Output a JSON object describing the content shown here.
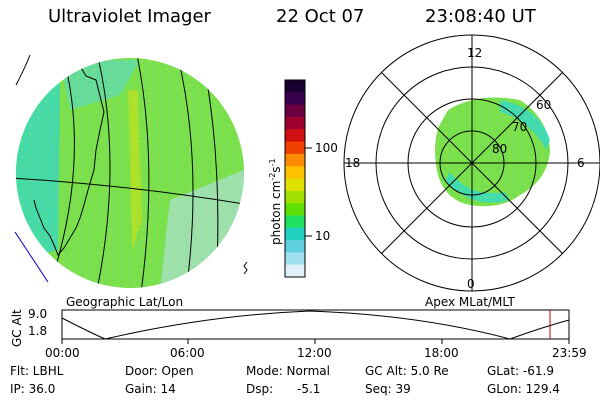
{
  "header": {
    "title": "Ultraviolet Imager",
    "date": "22 Oct 07",
    "time": "23:08:40 UT"
  },
  "colorbar": {
    "unit_label": "photon cm",
    "unit_sup1": "-2",
    "unit_mid": "s",
    "unit_sup2": "-1",
    "ticks": [
      "100",
      "10"
    ],
    "colors": [
      "#1a0030",
      "#3a0050",
      "#6a0040",
      "#a00030",
      "#d01010",
      "#f04000",
      "#ff8c00",
      "#ffc000",
      "#e0e000",
      "#a0e000",
      "#60e000",
      "#20e060",
      "#20d0c0",
      "#60d0e0",
      "#a0e0f0",
      "#e0f0f8"
    ]
  },
  "left_panel": {
    "label": "Geographic Lat/Lon",
    "fill": "#7be04a",
    "cyan": "#34d8c8"
  },
  "right_panel": {
    "label": "Apex MLat/MLT",
    "mlt": {
      "top": "12",
      "bottom": "0",
      "left": "18",
      "right": "6"
    },
    "mlat": [
      "60",
      "70",
      "80"
    ]
  },
  "altitude_plot": {
    "ylabel": "GC Alt",
    "yticks": [
      "9.0",
      "1.8"
    ],
    "xticks": [
      "00:00",
      "06:00",
      "12:00",
      "18:00",
      "23:59"
    ],
    "marker_color": "#c00000"
  },
  "footer": {
    "row1": {
      "flt": "Flt: LBHL",
      "door": "Door: Open",
      "mode": "Mode: Normal",
      "gcalt": "GC Alt: 5.0 Re",
      "glat": "GLat: -61.9"
    },
    "row2": {
      "ip": "IP: 36.0",
      "gain": "Gain: 14",
      "dsp_label": "Dsp:",
      "dsp_value": "-5.1",
      "seq": "Seq: 39",
      "glon": "GLon: 129.4"
    }
  }
}
